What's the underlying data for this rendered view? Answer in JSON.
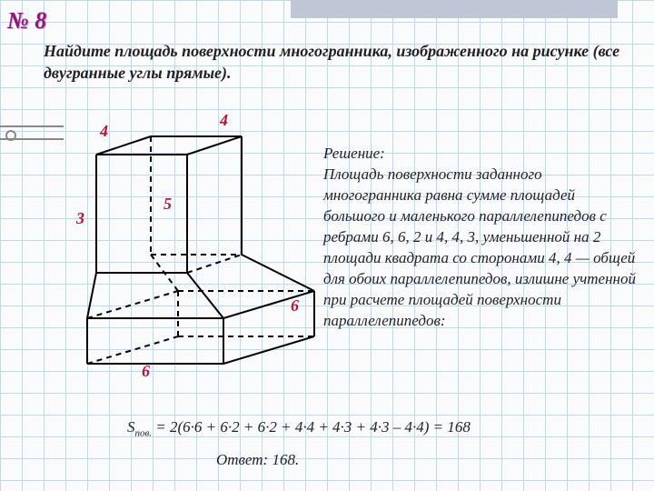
{
  "task_number": "№ 8",
  "problem": "Найдите площадь поверхности многогранника, изображенного на рисунке (все двугранные углы прямые).",
  "solution_heading": "Решение:",
  "solution_body": "Площадь поверхности заданного многогранника равна сумме площадей большого и маленького параллелепипедов с ребрами 6, 6, 2 и 4, 4, 3, уменьшенной на 2 площади квадрата со сторонами 4, 4 — общей для обоих параллелепипедов, излишне учтенной при расчете площадей поверхности параллелепипедов:",
  "formula": "Sпов. = 2(6·6 + 6·2 + 6·2 + 4·4 + 4·3 + 4·3 – 4·4) = 168",
  "answer": "Ответ: 168.",
  "labels": {
    "top4a": "4",
    "top4b": "4",
    "left3": "3",
    "mid5": "5",
    "bot6a": "6",
    "bot6b": "6"
  },
  "figure": {
    "type": "diagram",
    "stroke_solid": "#000000",
    "stroke_width": 2,
    "dash": "6 5",
    "background": "transparent",
    "label_color": "#c01030",
    "label_fontsize": 18,
    "lines_solid": [
      [
        50,
        30,
        150,
        30
      ],
      [
        150,
        30,
        150,
        160
      ],
      [
        50,
        30,
        50,
        160
      ],
      [
        50,
        30,
        110,
        10
      ],
      [
        150,
        30,
        210,
        10
      ],
      [
        110,
        10,
        210,
        10
      ],
      [
        210,
        10,
        210,
        140
      ],
      [
        40,
        210,
        190,
        210
      ],
      [
        190,
        210,
        190,
        260
      ],
      [
        40,
        260,
        190,
        260
      ],
      [
        40,
        210,
        40,
        260
      ],
      [
        190,
        210,
        290,
        180
      ],
      [
        290,
        180,
        290,
        230
      ],
      [
        190,
        260,
        290,
        230
      ],
      [
        50,
        160,
        40,
        210
      ],
      [
        150,
        160,
        190,
        210
      ],
      [
        50,
        160,
        150,
        160
      ],
      [
        210,
        140,
        290,
        180
      ]
    ],
    "lines_dashed": [
      [
        40,
        210,
        140,
        180
      ],
      [
        140,
        180,
        290,
        180
      ],
      [
        140,
        180,
        140,
        230
      ],
      [
        40,
        260,
        140,
        230
      ],
      [
        140,
        230,
        290,
        230
      ],
      [
        110,
        10,
        110,
        140
      ],
      [
        110,
        140,
        210,
        140
      ],
      [
        110,
        140,
        140,
        180
      ],
      [
        150,
        160,
        210,
        140
      ]
    ]
  }
}
